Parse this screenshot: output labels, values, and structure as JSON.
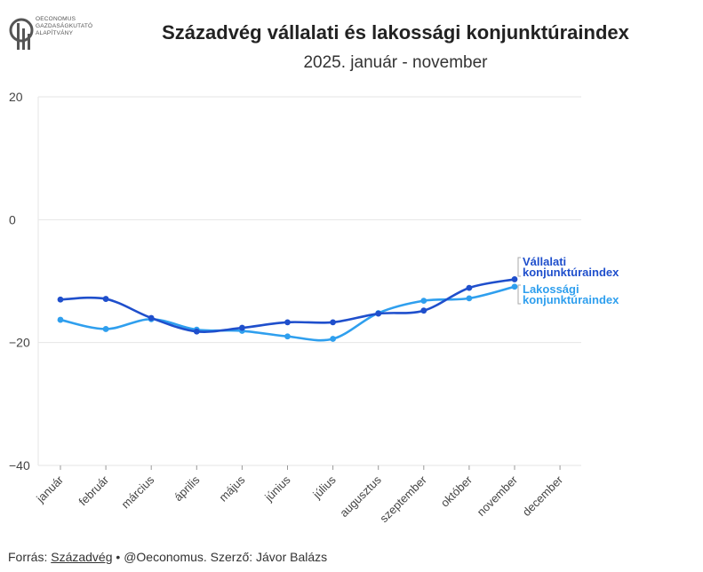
{
  "logo": {
    "lines": [
      "OECONOMUS",
      "GAZDASÁGKUTATÓ",
      "ALAPÍTVÁNY"
    ]
  },
  "footer": {
    "prefix": "Forrás: ",
    "source": "Századvég",
    "rest": " • @Oeconomus. Szerző: Jávor Balázs"
  },
  "colors": {
    "vallalati": "#1f4fcc",
    "lakossagi": "#2f9fee",
    "grid": "#e6e6e6"
  },
  "chart_data": {
    "type": "line",
    "title": "Századvég vállalati és lakossági konjunktúraindex",
    "subtitle": "2025. január - november",
    "xlabel": "",
    "ylabel": "",
    "ylim": [
      -40,
      20
    ],
    "yticks": [
      20,
      0,
      -20,
      -40
    ],
    "categories": [
      "január",
      "február",
      "március",
      "április",
      "május",
      "június",
      "július",
      "augusztus",
      "szeptember",
      "október",
      "november",
      "december"
    ],
    "series": [
      {
        "name": "Vállalati konjunktúraindex",
        "label_lines": [
          "Vállalati",
          "konjunktúraindex"
        ],
        "values": [
          -13.0,
          -12.9,
          -16.0,
          -18.2,
          -17.6,
          -16.7,
          -16.7,
          -15.3,
          -14.8,
          -11.1,
          -9.7,
          null
        ]
      },
      {
        "name": "Lakossági konjunktúraindex",
        "label_lines": [
          "Lakossági",
          "konjunktúraindex"
        ],
        "values": [
          -16.3,
          -17.8,
          -16.2,
          -17.9,
          -18.1,
          -19.0,
          -19.4,
          -15.2,
          -13.2,
          -12.8,
          -10.9,
          null
        ]
      }
    ]
  }
}
